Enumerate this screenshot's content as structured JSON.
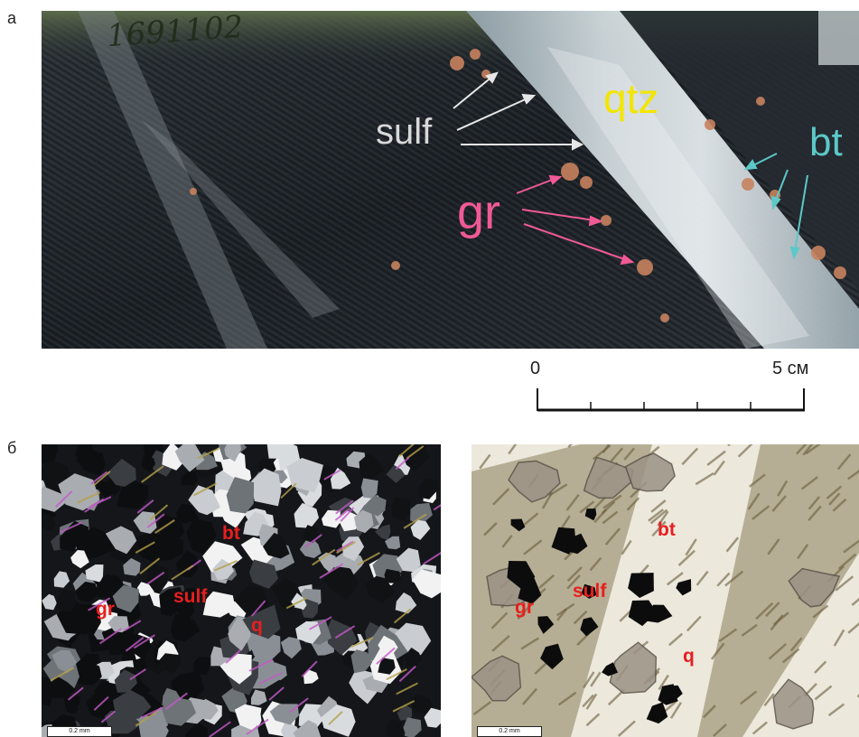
{
  "panels": {
    "a": {
      "letter": "а",
      "specimen_label": "1691102",
      "labels": {
        "qtz": "qtz",
        "sulf": "sulf",
        "gr": "gr",
        "bt": "bt"
      },
      "scale": {
        "start": "0",
        "end": "5 см"
      }
    },
    "b": {
      "letter": "б",
      "left_labels": {
        "gr": "gr",
        "sulf": "sulf",
        "bt": "bt",
        "q": "q"
      },
      "right_labels": {
        "gr": "gr",
        "sulf": "sulf",
        "bt": "bt",
        "q": "q"
      },
      "scale_bar": "0.2 mm"
    }
  },
  "colors": {
    "qtz_label": "#f2e600",
    "sulf_label": "#d8d8d8",
    "gr_label": "#f05a96",
    "bt_label": "#5cc8c8",
    "micro_label": "#e81e1e"
  },
  "icons": [
    "arrow"
  ]
}
